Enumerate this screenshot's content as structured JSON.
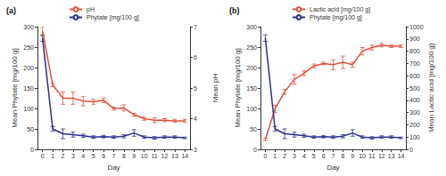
{
  "chart_data": [
    {
      "type": "line",
      "title": "(a)",
      "categories": [
        "0",
        "1",
        "2",
        "3",
        "4",
        "5",
        "6",
        "7",
        "8",
        "9",
        "10",
        "11",
        "12",
        "13",
        "14"
      ],
      "x_label": "Day",
      "y_label": "Mean Phytate [mg/100 g]",
      "y2_label": "Mean pH",
      "ylim": [
        0,
        300
      ],
      "yticks": [
        0,
        50,
        100,
        150,
        200,
        250,
        300
      ],
      "y2lim": [
        3,
        7
      ],
      "y2ticks": [
        3,
        4,
        5,
        6,
        7
      ],
      "legend": "top",
      "series": [
        {
          "name": "pH",
          "color": "#e0503a",
          "axis": "y2",
          "values": [
            6.85,
            5.1,
            4.67,
            4.67,
            4.57,
            4.55,
            4.6,
            4.33,
            4.35,
            4.13,
            4.0,
            3.95,
            3.95,
            3.93,
            3.93
          ],
          "errors": [
            0.15,
            0.05,
            0.2,
            0.2,
            0.15,
            0.08,
            0.08,
            0.05,
            0.1,
            0.05,
            0.05,
            0.08,
            0.05,
            0.05,
            0.05
          ]
        },
        {
          "name": "Phytate [mg/100 g]",
          "color": "#2b2d8f",
          "axis": "y",
          "values": [
            272,
            50,
            38,
            36,
            33,
            30,
            31,
            30,
            32,
            40,
            30,
            28,
            30,
            30,
            28
          ],
          "errors": [
            8,
            6,
            12,
            6,
            4,
            3,
            3,
            3,
            4,
            8,
            3,
            3,
            3,
            3,
            2
          ]
        }
      ]
    },
    {
      "type": "line",
      "title": "(b)",
      "categories": [
        "0",
        "1",
        "2",
        "3",
        "4",
        "5",
        "6",
        "7",
        "8",
        "9",
        "10",
        "11",
        "12",
        "13",
        "14"
      ],
      "x_label": "Day",
      "y_label": "Mean Phytate [mg/100 g]",
      "y2_label": "Mean Lactic acid [mg/100 g]",
      "ylim": [
        0,
        300
      ],
      "yticks": [
        0,
        50,
        100,
        150,
        200,
        250,
        300
      ],
      "y2lim": [
        0,
        1000
      ],
      "y2ticks": [
        0,
        100,
        200,
        300,
        400,
        500,
        600,
        700,
        800,
        900,
        1000
      ],
      "legend": "top",
      "series": [
        {
          "name": "Lactic acid [mg/100 g]",
          "color": "#e0503a",
          "axis": "y2",
          "values": [
            80,
            330,
            470,
            570,
            620,
            680,
            700,
            690,
            710,
            690,
            800,
            830,
            850,
            840,
            840
          ],
          "errors": [
            10,
            30,
            20,
            40,
            20,
            15,
            10,
            40,
            50,
            20,
            30,
            20,
            15,
            10,
            10
          ]
        },
        {
          "name": "Phytate [mg/100 g]",
          "color": "#2b2d8f",
          "axis": "y",
          "values": [
            272,
            50,
            38,
            36,
            33,
            30,
            31,
            30,
            32,
            40,
            30,
            28,
            30,
            30,
            28
          ],
          "errors": [
            8,
            6,
            12,
            6,
            4,
            3,
            3,
            3,
            4,
            8,
            3,
            3,
            3,
            3,
            2
          ]
        }
      ]
    }
  ]
}
